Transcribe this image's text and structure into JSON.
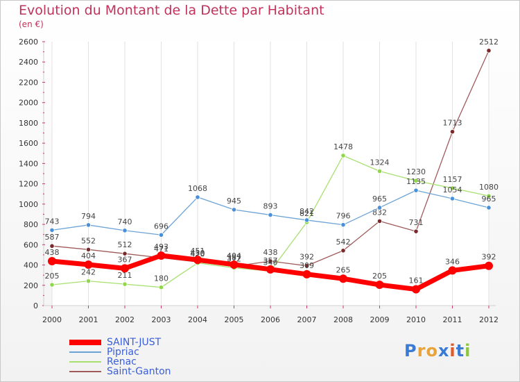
{
  "header": {
    "title": "Evolution du Montant de la Dette par Habitant",
    "subtitle": "(en €)"
  },
  "logo": {
    "text": "Proxiti",
    "colors": [
      "#3a7bd5",
      "#e8a33a",
      "#e8a33a",
      "#3a7bd5",
      "#e05a2a",
      "#3a7bd5",
      "#8dc63f"
    ]
  },
  "chart_data": {
    "type": "line",
    "x": [
      "2000",
      "2001",
      "2002",
      "2003",
      "2004",
      "2005",
      "2006",
      "2007",
      "2008",
      "2009",
      "2010",
      "2011",
      "2012"
    ],
    "ylim": [
      0,
      2600
    ],
    "yticks": [
      0,
      200,
      400,
      600,
      800,
      1000,
      1200,
      1400,
      1600,
      1800,
      2000,
      2200,
      2400,
      2600
    ],
    "grid": "vertical",
    "legend": "bottom-left",
    "series": [
      {
        "name": "Saint-Ganton",
        "color": "#7a2a2a",
        "line_color": "#a05a5a",
        "width": 1.3,
        "values": [
          587,
          552,
          512,
          471,
          430,
          387,
          438,
          392,
          542,
          832,
          731,
          1713,
          2512
        ]
      },
      {
        "name": "Renac",
        "color": "#8ed84a",
        "line_color": "#a8e070",
        "width": 1.3,
        "values": [
          205,
          242,
          211,
          180,
          420,
          372,
          340,
          821,
          1478,
          1324,
          1230,
          1157,
          1080
        ]
      },
      {
        "name": "Pipriac",
        "color": "#4a90d9",
        "line_color": "#6ba3d6",
        "width": 1.3,
        "values": [
          743,
          794,
          740,
          696,
          1068,
          945,
          893,
          842,
          796,
          965,
          1135,
          1054,
          965
        ]
      },
      {
        "name": "SAINT-JUST",
        "color": "#ff0000",
        "line_color": "#ff0000",
        "width": 7,
        "values": [
          438,
          404,
          367,
          493,
          451,
          404,
          357,
          309,
          265,
          205,
          161,
          346,
          392
        ]
      }
    ]
  },
  "legend_order": [
    "SAINT-JUST",
    "Pipriac",
    "Renac",
    "Saint-Ganton"
  ]
}
